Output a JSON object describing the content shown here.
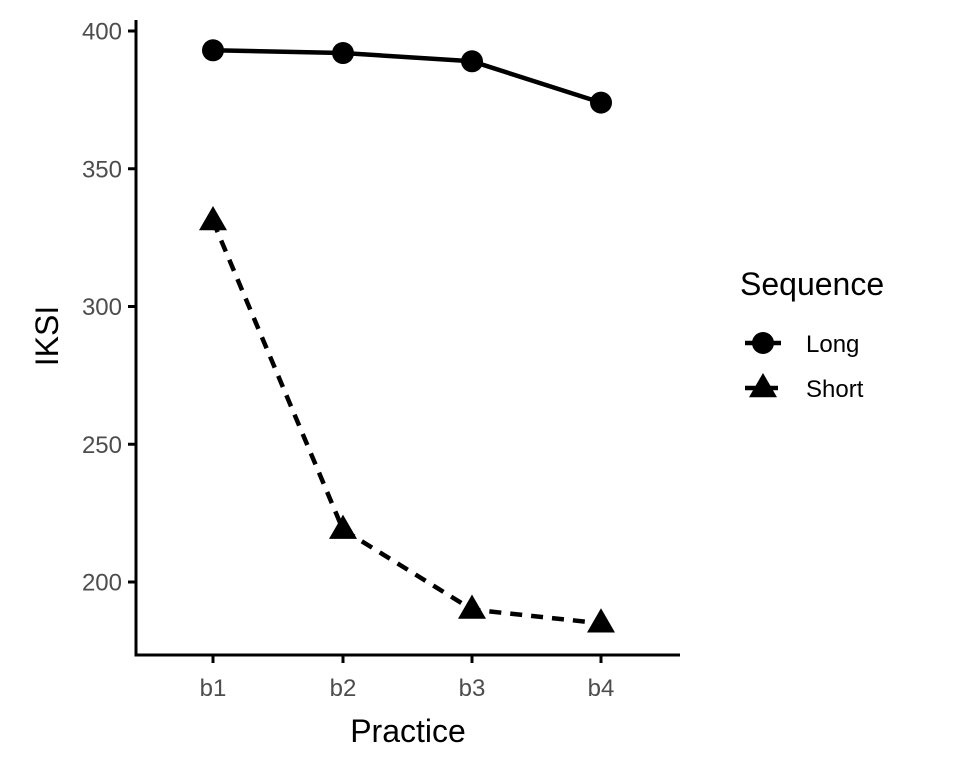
{
  "chart_data": {
    "type": "line",
    "categories": [
      "b1",
      "b2",
      "b3",
      "b4"
    ],
    "xlabel": "Practice",
    "ylabel": "IKSI",
    "ylim": [
      174,
      405
    ],
    "yticks": [
      200,
      250,
      300,
      350,
      400
    ],
    "grid": false,
    "legend": {
      "title": "Sequence",
      "position": "right"
    },
    "series": [
      {
        "name": "Long",
        "values": [
          393,
          392,
          389,
          374
        ],
        "marker": "circle",
        "line_style": "solid",
        "color": "#000000"
      },
      {
        "name": "Short",
        "values": [
          331,
          219,
          190,
          185
        ],
        "marker": "triangle",
        "line_style": "dashed",
        "color": "#000000"
      }
    ]
  }
}
